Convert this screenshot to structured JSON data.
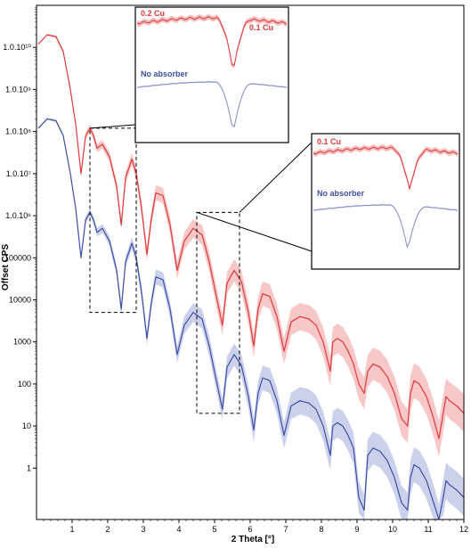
{
  "chart_data": {
    "type": "line",
    "xlabel": "2 Theta [°]",
    "ylabel": "Offset CPS",
    "xlim": [
      0,
      12
    ],
    "ylog": true,
    "grid": false,
    "x_ticks": [
      "1",
      "2",
      "3",
      "4",
      "5",
      "6",
      "7",
      "8",
      "9",
      "10",
      "11",
      "12"
    ],
    "y_ticks": [
      {
        "value": 1,
        "label": "1"
      },
      {
        "value": 10,
        "label": "10"
      },
      {
        "value": 100,
        "label": "100"
      },
      {
        "value": 1000,
        "label": "1000"
      },
      {
        "value": 10000,
        "label": "10000"
      },
      {
        "value": 100000,
        "label": "100000"
      },
      {
        "value": 1000000,
        "label": "1.0.10⁶"
      },
      {
        "value": 10000000,
        "label": "1.0.10⁷"
      },
      {
        "value": 100000000,
        "label": "1.0.10⁸"
      },
      {
        "value": 1000000000,
        "label": "1.0.10⁹"
      },
      {
        "value": 10000000000,
        "label": "1.0.10¹⁰"
      }
    ],
    "series": [
      {
        "color": "#e0383b",
        "band_color": "#f4a3a3",
        "x": [
          0.05,
          0.3,
          0.55,
          0.75,
          0.95,
          1.1,
          1.25,
          1.38,
          1.5,
          1.6,
          1.7,
          1.85,
          2.05,
          2.25,
          2.38,
          2.5,
          2.68,
          2.8,
          2.95,
          3.1,
          3.22,
          3.35,
          3.55,
          3.75,
          3.95,
          4.15,
          4.4,
          4.65,
          4.85,
          5.05,
          5.22,
          5.35,
          5.55,
          5.75,
          5.95,
          6.1,
          6.22,
          6.35,
          6.55,
          6.75,
          6.95,
          7.15,
          7.4,
          7.65,
          7.85,
          8.05,
          8.25,
          8.32,
          8.45,
          8.6,
          8.75,
          8.9,
          9.05,
          9.2,
          9.3,
          9.45,
          9.65,
          9.85,
          10.05,
          10.25,
          10.42,
          10.5,
          10.6,
          10.75,
          10.95,
          11.15,
          11.3,
          11.42,
          11.5,
          11.6,
          11.8,
          12.0
        ],
        "y": [
          12000000000.0,
          20000000000.0,
          18000000000.0,
          8000000000.0,
          1000000000.0,
          150000000.0,
          10000000.0,
          80000000.0,
          120000000.0,
          80000000.0,
          40000000.0,
          50000000.0,
          25000000.0,
          5000000.0,
          600000.0,
          8000000.0,
          22000000.0,
          10000000.0,
          1500000.0,
          120000.0,
          800000.0,
          3500000.0,
          3000000.0,
          600000.0,
          50000.0,
          250000.0,
          500000.0,
          350000.0,
          80000.0,
          12000.0,
          2500.0,
          25000.0,
          50000.0,
          28000.0,
          5000.0,
          800.0,
          6000.0,
          14000.0,
          12000.0,
          4000.0,
          600.0,
          3000.0,
          4000.0,
          3500.0,
          2500.0,
          1000.0,
          200.0,
          1000.0,
          1200.0,
          1000.0,
          600.0,
          300.0,
          100.0,
          60.0,
          200.0,
          300.0,
          250.0,
          150.0,
          60.0,
          15.0,
          10.0,
          60.0,
          120.0,
          100.0,
          50.0,
          15.0,
          5,
          20.0,
          50.0,
          40.0,
          30.0,
          20.0
        ]
      },
      {
        "color": "#3d4fa6",
        "band_color": "#a9b2de",
        "x": [
          0.05,
          0.3,
          0.55,
          0.75,
          0.95,
          1.1,
          1.25,
          1.38,
          1.5,
          1.6,
          1.7,
          1.85,
          2.05,
          2.25,
          2.38,
          2.5,
          2.68,
          2.8,
          2.95,
          3.1,
          3.22,
          3.35,
          3.55,
          3.75,
          3.95,
          4.15,
          4.4,
          4.65,
          4.85,
          5.05,
          5.22,
          5.35,
          5.55,
          5.75,
          5.95,
          6.1,
          6.22,
          6.35,
          6.55,
          6.75,
          6.95,
          7.15,
          7.4,
          7.65,
          7.85,
          8.05,
          8.25,
          8.32,
          8.45,
          8.6,
          8.75,
          8.9,
          9.05,
          9.2,
          9.3,
          9.45,
          9.65,
          9.85,
          10.05,
          10.25,
          10.42,
          10.5,
          10.6,
          10.75,
          10.95,
          11.15,
          11.3,
          11.42,
          11.5,
          11.6,
          11.8,
          12.0
        ],
        "y": [
          120000000.0,
          200000000.0,
          180000000.0,
          80000000.0,
          10000000.0,
          1500000.0,
          100000.0,
          800000.0,
          1200000.0,
          800000.0,
          400000.0,
          500000.0,
          250000.0,
          50000.0,
          6000.0,
          80000.0,
          220000.0,
          100000.0,
          15000.0,
          1200.0,
          8000.0,
          35000.0,
          30000.0,
          6000.0,
          500.0,
          2500.0,
          5000.0,
          3500.0,
          800.0,
          120.0,
          25.0,
          250.0,
          500.0,
          280.0,
          50.0,
          8,
          60.0,
          140.0,
          120.0,
          40.0,
          6,
          30.0,
          40.0,
          35.0,
          25.0,
          10.0,
          2,
          10.0,
          12.0,
          10.0,
          6,
          3,
          0.2,
          0.1,
          2,
          3,
          2.5,
          1.5,
          0.6,
          0.15,
          0.1,
          0.6,
          1.2,
          1.0,
          0.5,
          0.15,
          0.05,
          0.2,
          0.5,
          0.4,
          0.3,
          0.2
        ]
      }
    ],
    "insets": [
      {
        "labels": [
          {
            "text": "0.2 Cu",
            "color": "#e0383b"
          },
          {
            "text": "0.1 Cu",
            "color": "#e0383b"
          },
          {
            "text": "No absorber",
            "color": "#3d4fa6"
          }
        ]
      },
      {
        "labels": [
          {
            "text": "0.1 Cu",
            "color": "#e0383b"
          },
          {
            "text": "No absorber",
            "color": "#3d4fa6"
          }
        ]
      }
    ]
  }
}
